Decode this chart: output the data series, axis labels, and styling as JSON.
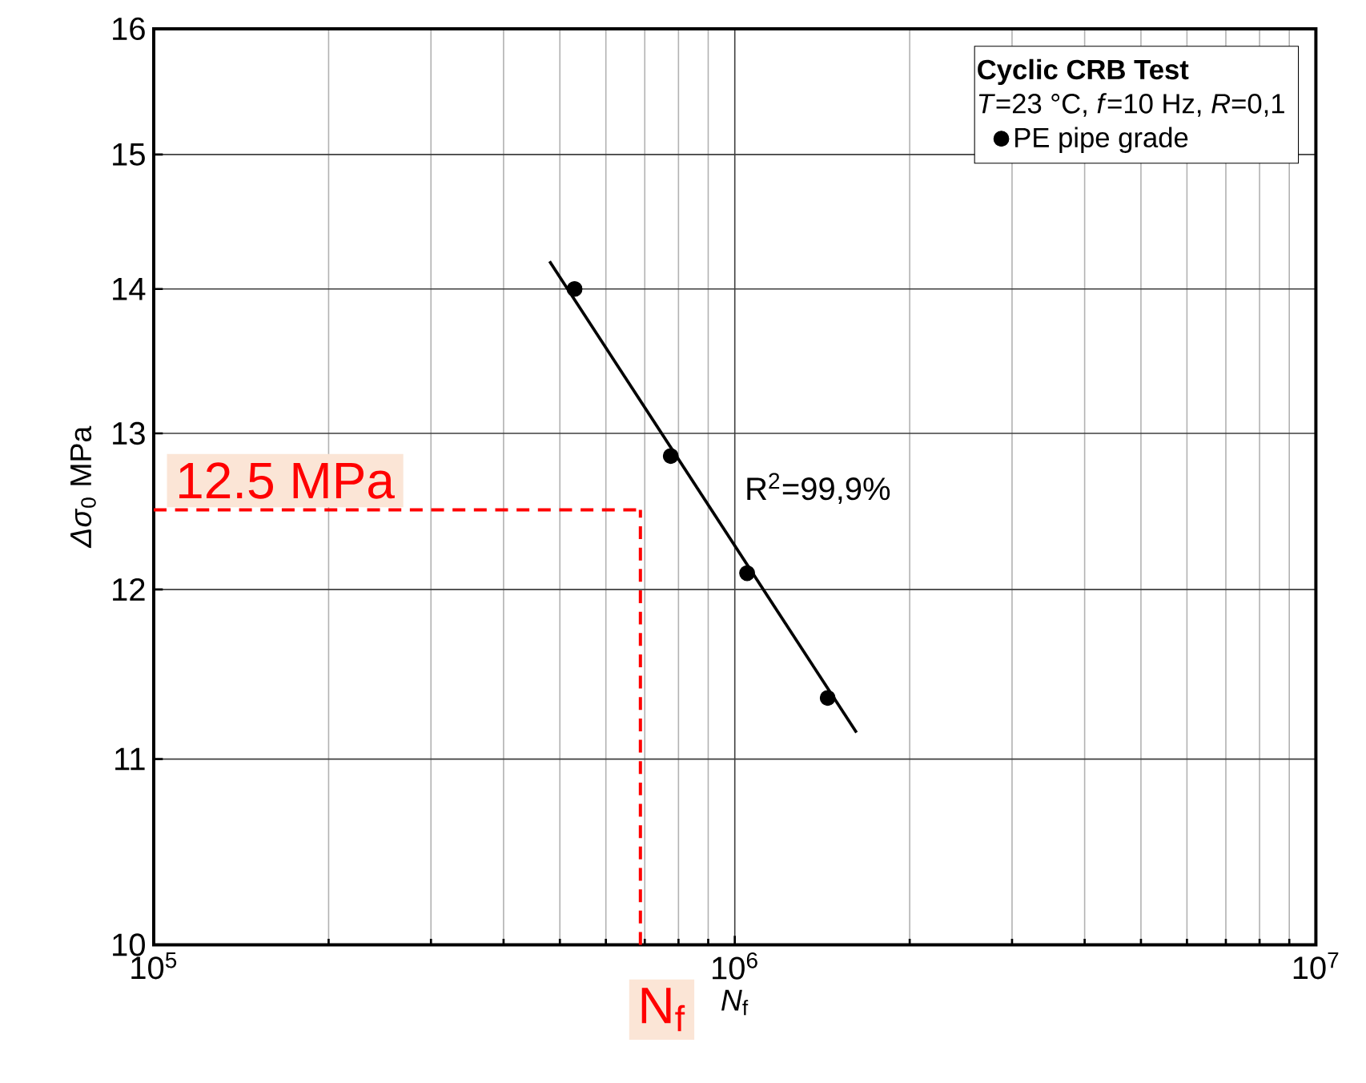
{
  "chart_data": {
    "type": "scatter",
    "xlabel": "*N*$_{f}$",
    "ylabel": "*Δσ*$_{0}$ MPa",
    "legend_title": "Cyclic CRB Test",
    "log": "xy",
    "grid": true,
    "legend": "top right",
    "xlim": [
      100000,
      10000000
    ],
    "ylim": [
      10,
      16
    ],
    "xticks": [
      {
        "value": 100000,
        "label": "10$^{5}$"
      },
      {
        "value": 1000000,
        "label": "10$^{6}$"
      },
      {
        "value": 10000000,
        "label": "10$^{7}$"
      }
    ],
    "yticks": [
      10,
      11,
      12,
      13,
      14,
      15,
      16
    ],
    "series": [
      {
        "name": "PE pipe grade",
        "marker": "circle",
        "color": "#000000",
        "x": [
          530000,
          776000,
          1050000,
          1445000
        ],
        "values": [
          14.0,
          12.85,
          12.1,
          11.35
        ]
      },
      {
        "type": "line",
        "color": "#000000",
        "x": [
          480000,
          1620000
        ],
        "values": [
          14.2,
          11.15
        ]
      }
    ],
    "ref_lines": [
      {
        "axis": "y",
        "value": 12.5,
        "label": "12.5 MPa",
        "color": "#ff0000",
        "line_style": "dashed"
      },
      {
        "axis": "x",
        "value": 688000,
        "label": "N$_{f}$",
        "color": "#ff0000",
        "line_style": "dashed"
      }
    ],
    "annotations": [
      "*T*=23 °C, *f*=10 Hz, *R*=0,1",
      "R$^{2}$=99,9%"
    ]
  }
}
